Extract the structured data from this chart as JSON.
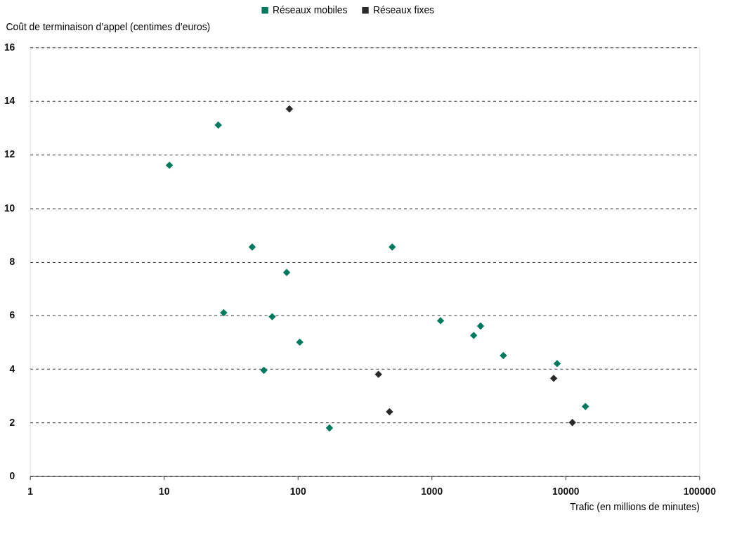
{
  "chart_data": {
    "type": "scatter",
    "xlabel": "Trafic (en millions de minutes)",
    "ylabel": "Coût de terminaison d’appel (centimes d’euros)",
    "log": "x",
    "xlim": [
      1,
      100000
    ],
    "xticks": [
      1,
      10,
      100,
      1000,
      10000,
      100000
    ],
    "ylim": [
      0,
      16
    ],
    "yticks": [
      0,
      2,
      4,
      6,
      8,
      10,
      12,
      14,
      16
    ],
    "grid": "y",
    "legend": "top",
    "marker": "diamond",
    "series": [
      {
        "name": "Réseaux mobiles",
        "color": "#007a5e",
        "x": [
          11,
          25.5,
          28,
          45.7,
          82.7,
          64.5,
          55.9,
          103.6,
          172.6,
          508,
          1167,
          2063,
          2322,
          3436,
          8670,
          14100
        ],
        "values": [
          11.6,
          13.1,
          6.1,
          8.55,
          7.6,
          5.95,
          3.95,
          5.0,
          1.8,
          8.55,
          5.8,
          5.25,
          5.6,
          4.5,
          4.2,
          2.6
        ]
      },
      {
        "name": "Réseaux fixes",
        "color": "#2b2a29",
        "x": [
          86.7,
          401,
          485,
          8170,
          11270
        ],
        "values": [
          13.7,
          3.8,
          2.4,
          3.65,
          2.0
        ]
      }
    ]
  }
}
